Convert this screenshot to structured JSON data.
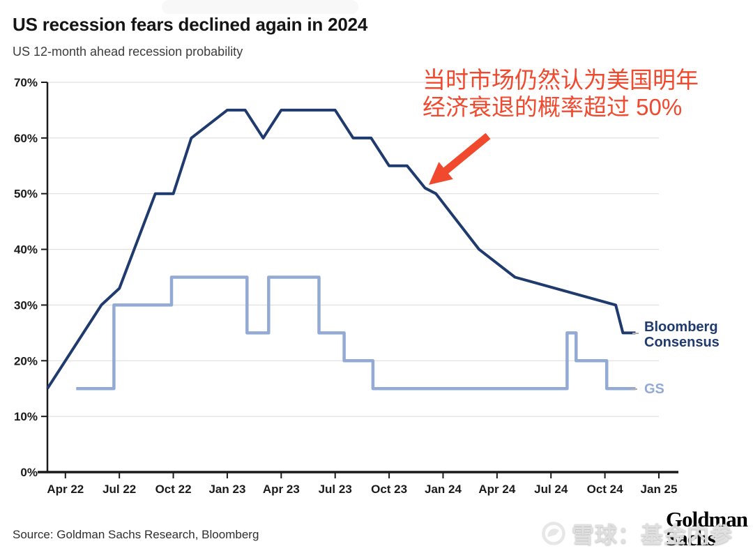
{
  "header": {
    "title": "US recession fears declined again in 2024",
    "subtitle": "US 12-month ahead recession probability"
  },
  "annotation": {
    "line1": "当时市场仍然认为美国明年",
    "line2": "经济衰退的概率超过 50%",
    "color": "#f0492e",
    "arrow_color": "#f0492e",
    "arrow_points_at": "Bloomberg Consensus line at ~50% around Dec 2023 / Jan 2024"
  },
  "legend": {
    "bloomberg": {
      "label_line1": "Bloomberg",
      "label_line2": "Consensus",
      "color": "#1f3a6d"
    },
    "gs": {
      "label": "GS",
      "color": "#93aad4"
    }
  },
  "source": {
    "text": "Source: Goldman Sachs Research, Bloomberg"
  },
  "logo": {
    "line1": "Goldman",
    "line2": "Sachs"
  },
  "watermark": {
    "icon": "xueqiu-logo",
    "text": "雪球：基金内参"
  },
  "chart_data": {
    "type": "line",
    "title": "US recession fears declined again in 2024",
    "subtitle": "US 12-month ahead recession probability",
    "grid": true,
    "y_axis": {
      "min": 0,
      "max": 70,
      "unit": "%",
      "tick_labels": [
        "0%",
        "10%",
        "20%",
        "30%",
        "40%",
        "50%",
        "60%",
        "70%"
      ]
    },
    "x_axis": {
      "tick_labels": [
        "Apr 22",
        "Jul 22",
        "Oct 22",
        "Jan 23",
        "Apr 23",
        "Jul 23",
        "Oct 23",
        "Jan 24",
        "Apr 24",
        "Jul 24",
        "Oct 24",
        "Jan 25"
      ],
      "t_unit": "months since Mar 2022",
      "t_of_first_tick": 1,
      "months_per_tick": 3,
      "t_min": 0,
      "t_max": 34
    },
    "legend_position": "right of line ends",
    "series": [
      {
        "name": "Bloomberg Consensus",
        "color": "#1f3a6d",
        "width": 4,
        "points_t_pct": [
          [
            0,
            15
          ],
          [
            3,
            30
          ],
          [
            4,
            33
          ],
          [
            6,
            50
          ],
          [
            7,
            50
          ],
          [
            8,
            60
          ],
          [
            10,
            65
          ],
          [
            11,
            65
          ],
          [
            12,
            60
          ],
          [
            13,
            65
          ],
          [
            16,
            65
          ],
          [
            17,
            60
          ],
          [
            18,
            60
          ],
          [
            19,
            55
          ],
          [
            20,
            55
          ],
          [
            21,
            51
          ],
          [
            21.6,
            50
          ],
          [
            24,
            40
          ],
          [
            26,
            35
          ],
          [
            31.6,
            30
          ],
          [
            32,
            25
          ],
          [
            32.7,
            25
          ]
        ]
      },
      {
        "name": "GS",
        "color": "#93aad4",
        "width": 4.5,
        "points_t_pct": [
          [
            1.6,
            15
          ],
          [
            3.7,
            15
          ],
          [
            3.7,
            30
          ],
          [
            6.9,
            30
          ],
          [
            6.9,
            35
          ],
          [
            11.1,
            35
          ],
          [
            11.1,
            25
          ],
          [
            12.3,
            25
          ],
          [
            12.3,
            35
          ],
          [
            15.1,
            35
          ],
          [
            15.1,
            25
          ],
          [
            16.5,
            25
          ],
          [
            16.5,
            20
          ],
          [
            18.1,
            20
          ],
          [
            18.1,
            15
          ],
          [
            28.9,
            15
          ],
          [
            28.9,
            25
          ],
          [
            29.4,
            25
          ],
          [
            29.4,
            20
          ],
          [
            31.1,
            20
          ],
          [
            31.1,
            15
          ],
          [
            32.7,
            15
          ]
        ]
      }
    ]
  }
}
